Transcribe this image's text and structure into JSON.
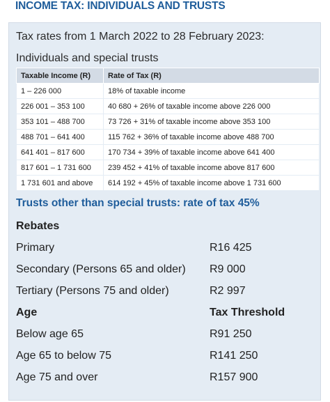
{
  "page_title": "INCOME TAX: INDIVIDUALS AND TRUSTS",
  "intro": "Tax rates from 1 March 2022 to 28 February 2023:",
  "table_caption": "Individuals and special trusts",
  "table": {
    "headers": [
      "Taxable Income (R)",
      "Rate of Tax (R)"
    ],
    "rows": [
      [
        "1 – 226 000",
        "18% of taxable income"
      ],
      [
        "226 001 – 353 100",
        "40 680 + 26% of taxable income above 226 000"
      ],
      [
        "353 101 – 488 700",
        "73 726 + 31% of taxable income above 353 100"
      ],
      [
        "488 701 – 641 400",
        "115 762 + 36% of taxable income above 488 700"
      ],
      [
        "641 401 – 817 600",
        "170 734 + 39% of taxable income above 641 400"
      ],
      [
        "817 601 – 1 731 600",
        "239 452 + 41% of taxable income above 817 600"
      ],
      [
        "1 731 601 and above",
        "614 192 + 45% of taxable income above 1 731 600"
      ]
    ]
  },
  "trusts_note": "Trusts other than special trusts: rate of tax 45%",
  "rebates": {
    "heading": "Rebates",
    "items": [
      {
        "label": "Primary",
        "value": "R16 425"
      },
      {
        "label": "Secondary (Persons 65 and older)",
        "value": "R9 000"
      },
      {
        "label": "Tertiary (Persons 75 and older)",
        "value": "R2 997"
      }
    ]
  },
  "thresholds": {
    "heading_left": "Age",
    "heading_right": "Tax Threshold",
    "items": [
      {
        "label": "Below age 65",
        "value": "R91 250"
      },
      {
        "label": "Age 65 to below 75",
        "value": "R141 250"
      },
      {
        "label": "Age 75 and over",
        "value": "R157 900"
      }
    ]
  },
  "colors": {
    "accent": "#1f5d9b",
    "panel_background": "#e4ecf4",
    "table_header_background": "#d3dbe5"
  }
}
